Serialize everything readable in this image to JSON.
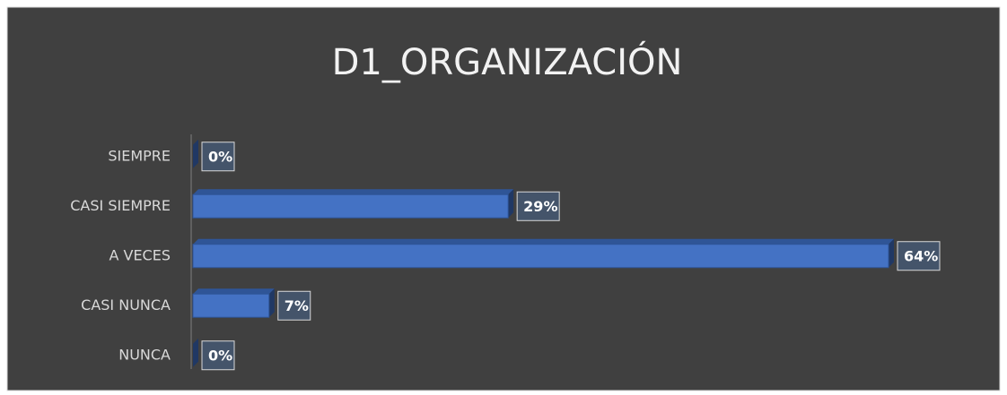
{
  "chart_data": {
    "type": "bar",
    "orientation": "horizontal",
    "title": "D1_ORGANIZACIÓN",
    "categories": [
      "SIEMPRE",
      "CASI SIEMPRE",
      "A VECES",
      "CASI NUNCA",
      "NUNCA"
    ],
    "values": [
      0,
      29,
      64,
      7,
      0
    ],
    "value_labels": [
      "0%",
      "29%",
      "64%",
      "7%",
      "0%"
    ],
    "color": "#4472c4"
  }
}
